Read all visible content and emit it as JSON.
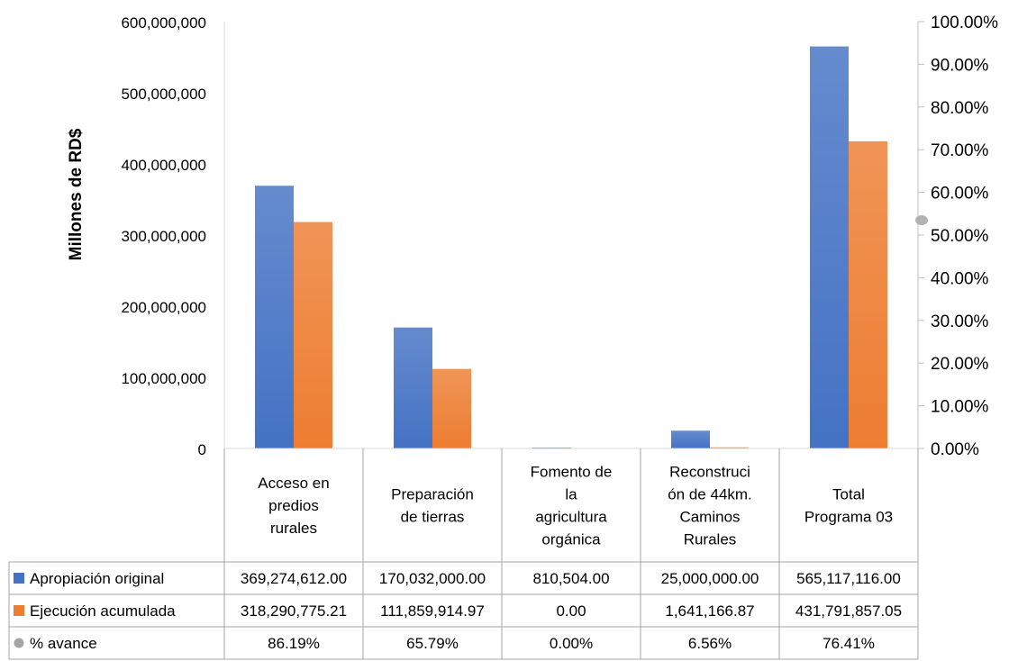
{
  "chart_data": {
    "type": "bar",
    "ylabel": "Millones de RD$",
    "ylim": [
      0,
      600000000
    ],
    "y_ticks": [
      "0",
      "100,000,000",
      "200,000,000",
      "300,000,000",
      "400,000,000",
      "500,000,000",
      "600,000,000"
    ],
    "y2lim": [
      0,
      100
    ],
    "y2_ticks": [
      "0.00%",
      "10.00%",
      "20.00%",
      "30.00%",
      "40.00%",
      "50.00%",
      "60.00%",
      "70.00%",
      "80.00%",
      "90.00%",
      "100.00%"
    ],
    "categories": [
      [
        "Acceso en",
        "predios",
        "rurales"
      ],
      [
        "Preparación",
        "de tierras"
      ],
      [
        "Fomento de",
        "la",
        "agricultura",
        "orgánica"
      ],
      [
        "Reconstruci",
        "ón de 44km.",
        "Caminos",
        "Rurales"
      ],
      [
        "Total",
        "Programa 03"
      ]
    ],
    "series": [
      {
        "name": "Apropiación original",
        "color": "#4472C4",
        "marker": "square",
        "values": [
          369274612.0,
          170032000.0,
          810504.0,
          25000000.0,
          565117116.0
        ],
        "labels": [
          "369,274,612.00",
          "170,032,000.00",
          "810,504.00",
          "25,000,000.00",
          "565,117,116.00"
        ]
      },
      {
        "name": "Ejecución acumulada",
        "color": "#ED7D31",
        "marker": "square",
        "values": [
          318290775.21,
          111859914.97,
          0.0,
          1641166.87,
          431791857.05
        ],
        "labels": [
          "318,290,775.21",
          "111,859,914.97",
          "0.00",
          "1,641,166.87",
          "431,791,857.05"
        ]
      },
      {
        "name": "% avance",
        "color": "#A5A5A5",
        "marker": "circle",
        "axis": "secondary",
        "values": [
          86.19,
          65.79,
          0.0,
          6.56,
          76.41
        ],
        "labels": [
          "86.19%",
          "65.79%",
          "0.00%",
          "6.56%",
          "76.41%"
        ]
      }
    ],
    "legend": "data-table"
  }
}
